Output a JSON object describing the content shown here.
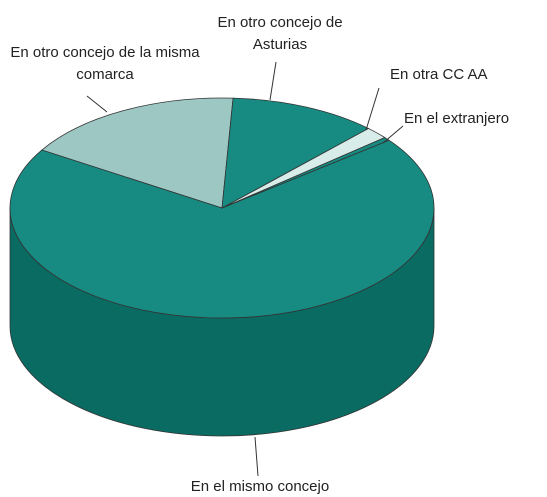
{
  "chart_data": {
    "type": "pie",
    "categories": [
      "En otro concejo de la misma comarca",
      "En el mismo concejo",
      "En el extranjero",
      "En otra CC AA",
      "En otro concejo de Asturias"
    ],
    "values": [
      17,
      69.4,
      0.5,
      1.8,
      11.3
    ],
    "colors": [
      "#9cc7c3",
      "#178b82",
      "#178b82",
      "#d8ecea",
      "#178b82"
    ],
    "side_colors": [
      "#7aa9a5",
      "#0a6b63",
      "#0a6b63",
      "#b5d2cf",
      "#0a6b63"
    ]
  }
}
